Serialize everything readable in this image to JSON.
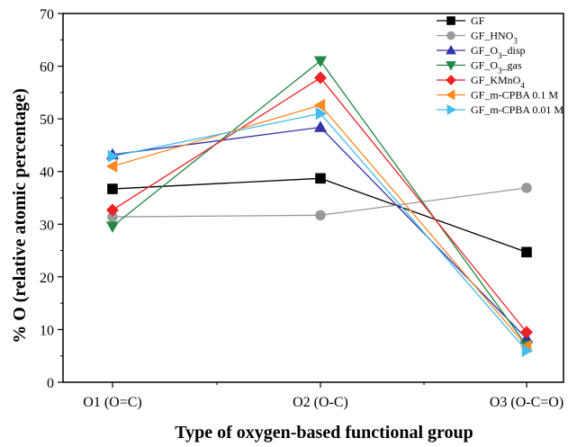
{
  "chart_data": {
    "type": "line",
    "categories": [
      "O1 (O=C)",
      "O2 (O-C)",
      "O3 (O-C=O)"
    ],
    "xlabel": "Type of oxygen-based functional group",
    "ylabel": "% O (relative atomic percentage)",
    "ylim": [
      0,
      70
    ],
    "yticks": [
      0,
      10,
      20,
      30,
      40,
      50,
      60,
      70
    ],
    "grid": false,
    "legend_position": "top-right",
    "series": [
      {
        "name": "GF",
        "name_parts": [
          [
            "GF",
            ""
          ]
        ],
        "color": "#000000",
        "marker": "square",
        "values": [
          36.7,
          38.7,
          24.7
        ]
      },
      {
        "name": "GF_HNO3",
        "name_parts": [
          [
            "GF_HNO",
            ""
          ],
          [
            "3",
            "sub"
          ]
        ],
        "color": "#999999",
        "marker": "circle",
        "values": [
          31.4,
          31.7,
          36.9
        ]
      },
      {
        "name": "GF_O3_disp",
        "name_parts": [
          [
            "GF_O",
            ""
          ],
          [
            "3",
            "sub"
          ],
          [
            "_disp",
            ""
          ]
        ],
        "color": "#3333aa",
        "marker": "triangle-up",
        "values": [
          43.2,
          48.4,
          8.3
        ]
      },
      {
        "name": "GF_O3_gas",
        "name_parts": [
          [
            "GF_O",
            ""
          ],
          [
            "3",
            "sub"
          ],
          [
            "_gas",
            ""
          ]
        ],
        "color": "#228844",
        "marker": "triangle-down",
        "values": [
          29.6,
          61.0,
          7.0
        ]
      },
      {
        "name": "GF_KMnO4",
        "name_parts": [
          [
            "GF_KMnO",
            ""
          ],
          [
            "4",
            "sub"
          ]
        ],
        "color": "#ee2222",
        "marker": "diamond",
        "values": [
          32.7,
          57.8,
          9.5
        ]
      },
      {
        "name": "GF_m-CPBA 0.1 M",
        "name_parts": [
          [
            "GF_m-CPBA 0.1 M",
            ""
          ]
        ],
        "color": "#ff8822",
        "marker": "triangle-left",
        "values": [
          41.0,
          52.6,
          6.8
        ]
      },
      {
        "name": "GF_m-CPBA 0.01 M",
        "name_parts": [
          [
            "GF_m-CPBA 0.01 M",
            ""
          ]
        ],
        "color": "#44bbee",
        "marker": "triangle-right",
        "values": [
          42.9,
          51.0,
          6.0
        ]
      }
    ]
  }
}
